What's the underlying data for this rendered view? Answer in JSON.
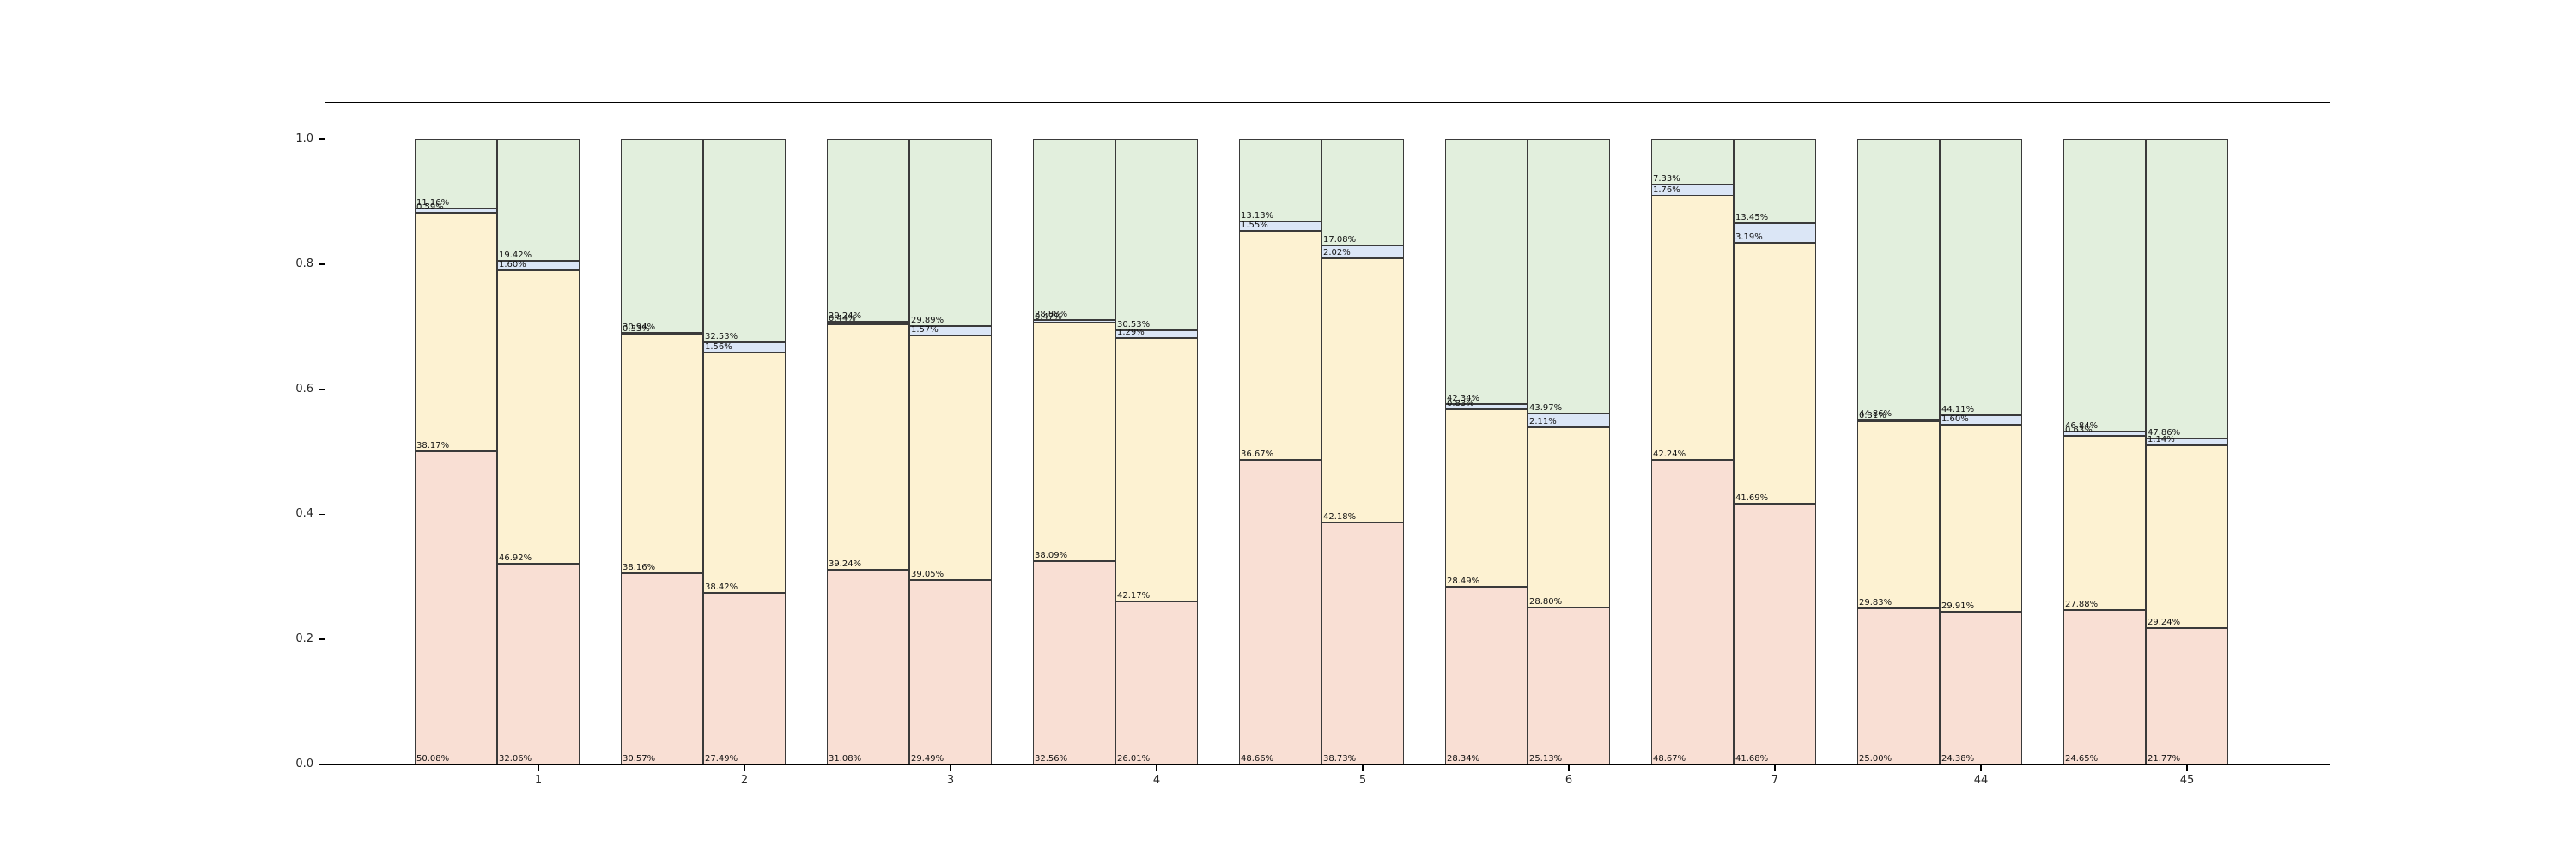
{
  "chart_data": {
    "type": "bar",
    "variant": "stacked-normalized-grouped",
    "title": "",
    "xlabel": "",
    "ylabel": "",
    "grid": false,
    "legend": null,
    "ylim": [
      0.0,
      1.058
    ],
    "yticks": [
      "0.0",
      "0.2",
      "0.4",
      "0.6",
      "0.8",
      "1.0"
    ],
    "ytick_values": [
      0.0,
      0.2,
      0.4,
      0.6,
      0.8,
      1.0
    ],
    "categories": [
      "1",
      "2",
      "3",
      "4",
      "5",
      "6",
      "7",
      "44",
      "45"
    ],
    "segment_order_bottom_to_top": [
      "pink",
      "yellow",
      "blue",
      "green"
    ],
    "colors": {
      "pink": "#f9dfd4",
      "yellow": "#fdf2d2",
      "blue": "#dbe6f6",
      "green": "#e2efdd",
      "edge": "#3a3a3a",
      "axis": "#000000",
      "background": "#ffffff"
    },
    "groups": [
      {
        "category": "1",
        "bars": [
          {
            "values": [
              50.08,
              38.17,
              0.59,
              11.16
            ],
            "labels": [
              "50.08%",
              "38.17%",
              "0.59%",
              "11.16%"
            ]
          },
          {
            "values": [
              32.06,
              46.92,
              1.6,
              19.42
            ],
            "labels": [
              "32.06%",
              "46.92%",
              "1.60%",
              "19.42%"
            ]
          }
        ]
      },
      {
        "category": "2",
        "bars": [
          {
            "values": [
              30.57,
              38.16,
              0.33,
              30.94
            ],
            "labels": [
              "30.57%",
              "38.16%",
              "0.33%",
              "30.94%"
            ]
          },
          {
            "values": [
              27.49,
              38.42,
              1.56,
              32.53
            ],
            "labels": [
              "27.49%",
              "38.42%",
              "1.56%",
              "32.53%"
            ]
          }
        ]
      },
      {
        "category": "3",
        "bars": [
          {
            "values": [
              31.08,
              39.24,
              0.44,
              29.24
            ],
            "labels": [
              "31.08%",
              "39.24%",
              "0.44%",
              "29.24%"
            ]
          },
          {
            "values": [
              29.49,
              39.05,
              1.57,
              29.89
            ],
            "labels": [
              "29.49%",
              "39.05%",
              "1.57%",
              "29.89%"
            ]
          }
        ]
      },
      {
        "category": "4",
        "bars": [
          {
            "values": [
              32.56,
              38.09,
              0.47,
              28.88
            ],
            "labels": [
              "32.56%",
              "38.09%",
              "0.47%",
              "28.88%"
            ]
          },
          {
            "values": [
              26.01,
              42.17,
              1.29,
              30.53
            ],
            "labels": [
              "26.01%",
              "42.17%",
              "1.29%",
              "30.53%"
            ]
          }
        ]
      },
      {
        "category": "5",
        "bars": [
          {
            "values": [
              48.66,
              36.67,
              1.55,
              13.13
            ],
            "labels": [
              "48.66%",
              "36.67%",
              "1.55%",
              "13.13%"
            ]
          },
          {
            "values": [
              38.73,
              42.18,
              2.02,
              17.08
            ],
            "labels": [
              "38.73%",
              "42.18%",
              "2.02%",
              "17.08%"
            ]
          }
        ]
      },
      {
        "category": "6",
        "bars": [
          {
            "values": [
              28.34,
              28.49,
              0.83,
              42.34
            ],
            "labels": [
              "28.34%",
              "28.49%",
              "0.83%",
              "42.34%"
            ]
          },
          {
            "values": [
              25.13,
              28.8,
              2.11,
              43.97
            ],
            "labels": [
              "25.13%",
              "28.80%",
              "2.11%",
              "43.97%"
            ]
          }
        ]
      },
      {
        "category": "7",
        "bars": [
          {
            "values": [
              48.67,
              42.24,
              1.76,
              7.33
            ],
            "labels": [
              "48.67%",
              "42.24%",
              "1.76%",
              "7.33%"
            ]
          },
          {
            "values": [
              41.68,
              41.69,
              3.19,
              13.45
            ],
            "labels": [
              "41.68%",
              "41.69%",
              "3.19%",
              "13.45%"
            ]
          }
        ]
      },
      {
        "category": "44",
        "bars": [
          {
            "values": [
              25.0,
              29.83,
              0.31,
              44.86
            ],
            "labels": [
              "25.00%",
              "29.83%",
              "0.31%",
              "44.86%"
            ]
          },
          {
            "values": [
              24.38,
              29.91,
              1.6,
              44.11
            ],
            "labels": [
              "24.38%",
              "29.91%",
              "1.60%",
              "44.11%"
            ]
          }
        ]
      },
      {
        "category": "45",
        "bars": [
          {
            "values": [
              24.65,
              27.88,
              0.63,
              46.84
            ],
            "labels": [
              "24.65%",
              "27.88%",
              "0.63%",
              "46.84%"
            ]
          },
          {
            "values": [
              21.77,
              29.24,
              1.14,
              47.86
            ],
            "labels": [
              "21.77%",
              "29.24%",
              "1.14%",
              "47.86%"
            ]
          }
        ]
      }
    ]
  }
}
